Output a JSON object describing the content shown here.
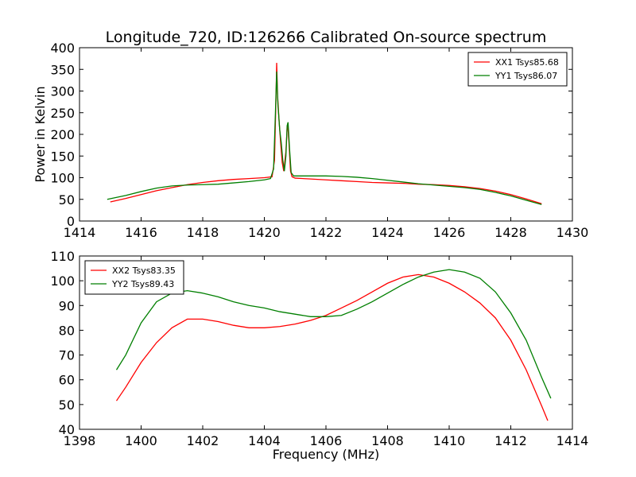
{
  "title": "Longitude_720, ID:126266 Calibrated On-source spectrum",
  "chart_data": [
    {
      "type": "line",
      "ylabel": "Power in Kelvin",
      "xlabel": "",
      "xlim": [
        1414,
        1430
      ],
      "ylim": [
        0,
        400
      ],
      "xticks": [
        1414,
        1416,
        1418,
        1420,
        1422,
        1424,
        1426,
        1428,
        1430
      ],
      "yticks": [
        0,
        50,
        100,
        150,
        200,
        250,
        300,
        350,
        400
      ],
      "legend_position": "top-right",
      "series": [
        {
          "name": "XX1 Tsys85.68",
          "color": "#ff0000",
          "points": [
            [
              1415.0,
              44
            ],
            [
              1415.5,
              52
            ],
            [
              1416.0,
              61
            ],
            [
              1416.5,
              70
            ],
            [
              1417.0,
              77
            ],
            [
              1417.5,
              84
            ],
            [
              1418.0,
              89
            ],
            [
              1418.5,
              93
            ],
            [
              1419.0,
              96
            ],
            [
              1419.5,
              98
            ],
            [
              1420.0,
              100
            ],
            [
              1420.25,
              102
            ],
            [
              1420.33,
              140
            ],
            [
              1420.38,
              290
            ],
            [
              1420.4,
              365
            ],
            [
              1420.43,
              290
            ],
            [
              1420.48,
              230
            ],
            [
              1420.53,
              180
            ],
            [
              1420.58,
              135
            ],
            [
              1420.63,
              115
            ],
            [
              1420.7,
              160
            ],
            [
              1420.74,
              215
            ],
            [
              1420.76,
              225
            ],
            [
              1420.8,
              180
            ],
            [
              1420.85,
              115
            ],
            [
              1420.9,
              102
            ],
            [
              1421.0,
              99
            ],
            [
              1421.5,
              97
            ],
            [
              1422.0,
              95
            ],
            [
              1422.5,
              93
            ],
            [
              1423.0,
              91
            ],
            [
              1423.5,
              89
            ],
            [
              1424.0,
              88
            ],
            [
              1424.5,
              87
            ],
            [
              1425.0,
              85
            ],
            [
              1425.5,
              84
            ],
            [
              1426.0,
              82
            ],
            [
              1426.5,
              79
            ],
            [
              1427.0,
              75
            ],
            [
              1427.5,
              69
            ],
            [
              1428.0,
              61
            ],
            [
              1428.5,
              51
            ],
            [
              1429.0,
              40
            ]
          ]
        },
        {
          "name": "YY1 Tsys86.07",
          "color": "#007f00",
          "points": [
            [
              1414.9,
              50
            ],
            [
              1415.5,
              59
            ],
            [
              1416.0,
              68
            ],
            [
              1416.5,
              76
            ],
            [
              1417.0,
              81
            ],
            [
              1417.5,
              83
            ],
            [
              1418.0,
              84
            ],
            [
              1418.5,
              85
            ],
            [
              1419.0,
              88
            ],
            [
              1419.5,
              91
            ],
            [
              1420.0,
              95
            ],
            [
              1420.2,
              98
            ],
            [
              1420.3,
              120
            ],
            [
              1420.36,
              250
            ],
            [
              1420.4,
              345
            ],
            [
              1420.44,
              270
            ],
            [
              1420.5,
              210
            ],
            [
              1420.55,
              180
            ],
            [
              1420.6,
              140
            ],
            [
              1420.65,
              115
            ],
            [
              1420.7,
              150
            ],
            [
              1420.74,
              220
            ],
            [
              1420.77,
              228
            ],
            [
              1420.82,
              165
            ],
            [
              1420.87,
              112
            ],
            [
              1420.95,
              104
            ],
            [
              1421.5,
              104
            ],
            [
              1422.0,
              104
            ],
            [
              1422.5,
              103
            ],
            [
              1423.0,
              101
            ],
            [
              1423.5,
              98
            ],
            [
              1424.0,
              94
            ],
            [
              1424.5,
              90
            ],
            [
              1425.0,
              86
            ],
            [
              1425.5,
              83
            ],
            [
              1426.0,
              80
            ],
            [
              1426.5,
              77
            ],
            [
              1427.0,
              73
            ],
            [
              1427.5,
              66
            ],
            [
              1428.0,
              58
            ],
            [
              1428.5,
              48
            ],
            [
              1429.0,
              38
            ]
          ]
        }
      ]
    },
    {
      "type": "line",
      "ylabel": "",
      "xlabel": "Frequency (MHz)",
      "xlim": [
        1398,
        1414
      ],
      "ylim": [
        40,
        110
      ],
      "xticks": [
        1398,
        1400,
        1402,
        1404,
        1406,
        1408,
        1410,
        1412,
        1414
      ],
      "yticks": [
        40,
        50,
        60,
        70,
        80,
        90,
        100,
        110
      ],
      "legend_position": "top-left",
      "series": [
        {
          "name": "XX2 Tsys83.35",
          "color": "#ff0000",
          "points": [
            [
              1399.2,
              51.5
            ],
            [
              1399.5,
              57
            ],
            [
              1400.0,
              67
            ],
            [
              1400.5,
              75
            ],
            [
              1401.0,
              81
            ],
            [
              1401.5,
              84.5
            ],
            [
              1402.0,
              84.5
            ],
            [
              1402.5,
              83.5
            ],
            [
              1403.0,
              82
            ],
            [
              1403.5,
              81
            ],
            [
              1404.0,
              81
            ],
            [
              1404.5,
              81.5
            ],
            [
              1405.0,
              82.5
            ],
            [
              1405.5,
              84
            ],
            [
              1406.0,
              86
            ],
            [
              1406.5,
              89
            ],
            [
              1407.0,
              92
            ],
            [
              1407.5,
              95.5
            ],
            [
              1408.0,
              99
            ],
            [
              1408.5,
              101.5
            ],
            [
              1409.0,
              102.5
            ],
            [
              1409.5,
              101.5
            ],
            [
              1410.0,
              99
            ],
            [
              1410.5,
              95.5
            ],
            [
              1411.0,
              91
            ],
            [
              1411.5,
              85
            ],
            [
              1412.0,
              76
            ],
            [
              1412.5,
              64
            ],
            [
              1413.0,
              49.5
            ],
            [
              1413.2,
              43.5
            ]
          ]
        },
        {
          "name": "YY2 Tsys89.43",
          "color": "#007f00",
          "points": [
            [
              1399.2,
              64
            ],
            [
              1399.5,
              70
            ],
            [
              1400.0,
              83
            ],
            [
              1400.5,
              91.5
            ],
            [
              1401.0,
              95
            ],
            [
              1401.5,
              96
            ],
            [
              1402.0,
              95
            ],
            [
              1402.5,
              93.5
            ],
            [
              1403.0,
              91.5
            ],
            [
              1403.5,
              90
            ],
            [
              1404.0,
              89
            ],
            [
              1404.5,
              87.5
            ],
            [
              1405.0,
              86.5
            ],
            [
              1405.5,
              85.5
            ],
            [
              1406.0,
              85.5
            ],
            [
              1406.5,
              86
            ],
            [
              1407.0,
              88.5
            ],
            [
              1407.5,
              91.5
            ],
            [
              1408.0,
              95
            ],
            [
              1408.5,
              98.5
            ],
            [
              1409.0,
              101.5
            ],
            [
              1409.5,
              103.5
            ],
            [
              1410.0,
              104.5
            ],
            [
              1410.5,
              103.5
            ],
            [
              1411.0,
              101
            ],
            [
              1411.5,
              95.5
            ],
            [
              1412.0,
              87
            ],
            [
              1412.5,
              76
            ],
            [
              1413.0,
              61
            ],
            [
              1413.3,
              52.5
            ]
          ]
        }
      ]
    }
  ]
}
